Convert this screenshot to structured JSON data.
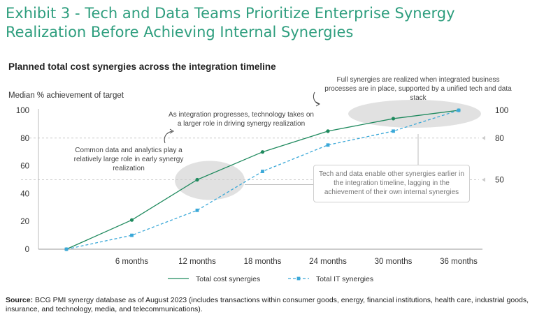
{
  "title": "Exhibit 3 - Tech and Data Teams Prioritize Enterprise Synergy Realization Before Achieving Internal Synergies",
  "subtitle": "Planned total cost synergies across the integration timeline",
  "source_label": "Source:",
  "source_text": " BCG PMI synergy database as of August 2023 (includes transactions within consumer goods, energy, financial institutions, health care, industrial goods, insurance, and technology, media, and telecommunications).",
  "annotations": {
    "early": "Common data and analytics play a relatively large role in early synergy realization",
    "middle": "As integration progresses, technology takes on a larger role in driving synergy realization",
    "full": "Full synergies are realized when integrated business processes are in place, supported by a unified tech and data stack",
    "callout": "Tech and data enable other synergies earlier in the integration timeline, lagging in the achievement of their own internal synergies"
  },
  "colors": {
    "title": "#2e9e7e",
    "total": "#1f8a5e",
    "it": "#3aa8d8",
    "highlight": "#d9d9d9",
    "reference": "#cccccc"
  },
  "chart_data": {
    "type": "line",
    "ylabel": "Median % achievement of target",
    "categories": [
      "",
      "6 months",
      "12 months",
      "18 months",
      "24 months",
      "30 months",
      "36 months"
    ],
    "yticks": [
      0,
      20,
      40,
      60,
      80,
      100
    ],
    "ylim": [
      0,
      100
    ],
    "grid": false,
    "legend_position": "bottom",
    "series": [
      {
        "name": "Total cost synergies",
        "style": "solid",
        "marker": "circle",
        "values": [
          0,
          21,
          50,
          70,
          85,
          94,
          100
        ]
      },
      {
        "name": "Total IT synergies",
        "style": "dashed",
        "marker": "square",
        "values": [
          0,
          10,
          28,
          56,
          75,
          85,
          100
        ]
      }
    ],
    "reference_lines": [
      {
        "value": 80,
        "label": "80"
      },
      {
        "value": 50,
        "label": "50"
      },
      {
        "value": 100,
        "label": "100"
      }
    ]
  }
}
